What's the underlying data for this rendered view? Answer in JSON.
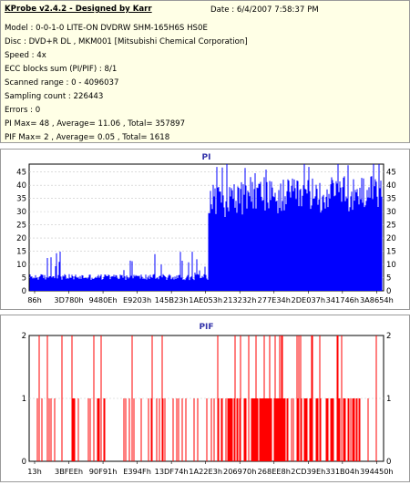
{
  "info": {
    "title": "KProbe v2.4.2 - Designed by Karr",
    "date": "Date : 6/4/2007 7:58:37 PM",
    "lines": [
      "Model : 0-0-1-0 LITE-ON DVDRW SHM-165H6S HS0E",
      "Disc : DVD+R DL , MKM001 [Mitsubishi Chemical Corporation]",
      "Speed : 4x",
      "ECC blocks sum (PI/PIF) : 8/1",
      "Scanned range : 0 - 4096037",
      "Sampling count : 226443",
      "Errors : 0",
      "PI Max= 48 , Average= 11.06 , Total= 357897",
      "PIF Max= 2 , Average= 0.05 , Total= 1618"
    ]
  },
  "chart_data": [
    {
      "type": "bar",
      "title": "PI",
      "ylim": [
        0,
        48
      ],
      "yticks": [
        0,
        5,
        10,
        15,
        20,
        25,
        30,
        35,
        40,
        45
      ],
      "xticks": [
        "86h",
        "3D780h",
        "9480Eh",
        "E9203h",
        "145B23h",
        "1AE053h",
        "213232h",
        "277E34h",
        "2DE037h",
        "341746h",
        "3A8654h"
      ],
      "max": 48,
      "average": 11.06,
      "total": 357897,
      "color": "#0000ff",
      "segments": [
        {
          "from_fraction": 0.0,
          "to_fraction": 0.505,
          "typical": 5,
          "peak": 15
        },
        {
          "from_fraction": 0.505,
          "to_fraction": 1.0,
          "typical": 30,
          "peak": 48
        }
      ]
    },
    {
      "type": "bar",
      "title": "PIF",
      "ylim": [
        0,
        2
      ],
      "yticks": [
        0,
        1,
        2
      ],
      "xticks": [
        "13h",
        "3BFEEh",
        "90F91h",
        "E394Fh",
        "13DF74h",
        "1A22E3h",
        "206970h",
        "268EE8h",
        "2CD39Eh",
        "331B04h",
        "394450h"
      ],
      "max": 2,
      "average": 0.05,
      "total": 1618,
      "color": "#ff0000"
    }
  ]
}
